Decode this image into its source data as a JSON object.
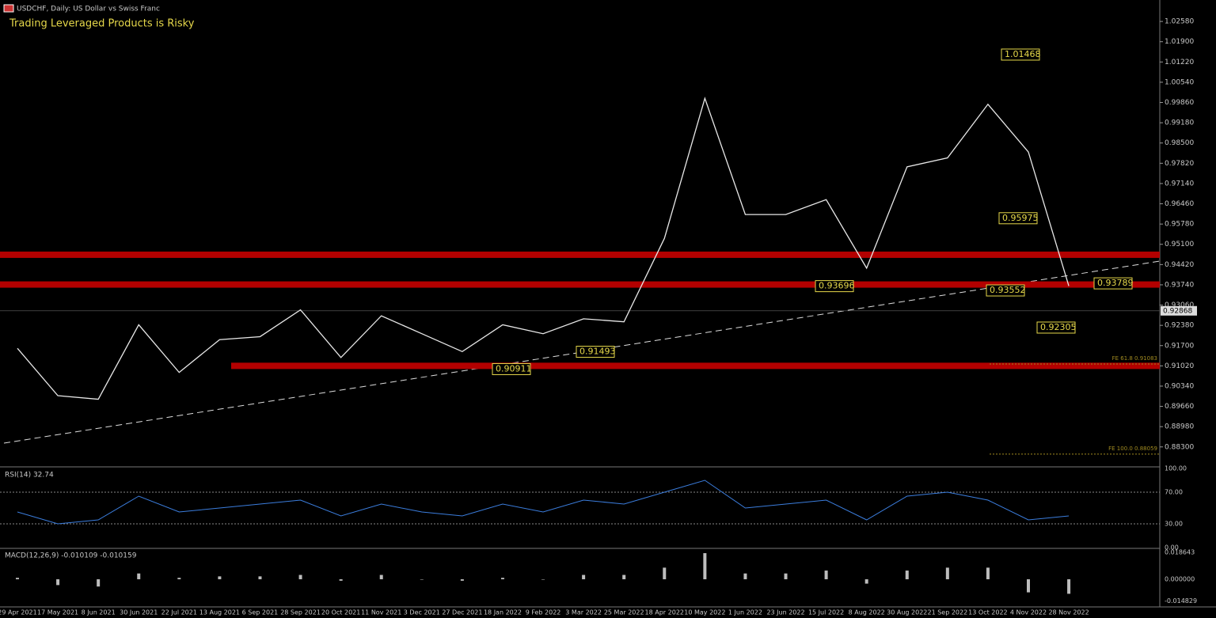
{
  "header": {
    "symbol": "USDCHF, Daily:  US Dollar vs Swiss Franc",
    "warning": "Trading Leveraged Products is Risky"
  },
  "chart_data": {
    "type": "line",
    "categories": [
      "29 Apr 2021",
      "17 May 2021",
      "8 Jun 2021",
      "30 Jun 2021",
      "22 Jul 2021",
      "13 Aug 2021",
      "6 Sep 2021",
      "28 Sep 2021",
      "20 Oct 2021",
      "11 Nov 2021",
      "3 Dec 2021",
      "27 Dec 2021",
      "18 Jan 2022",
      "9 Feb 2022",
      "3 Mar 2022",
      "25 Mar 2022",
      "18 Apr 2022",
      "10 May 2022",
      "1 Jun 2022",
      "23 Jun 2022",
      "15 Jul 2022",
      "8 Aug 2022",
      "30 Aug 2022",
      "21 Sep 2022",
      "13 Oct 2022",
      "4 Nov 2022",
      "28 Nov 2022"
    ],
    "series": [
      {
        "name": "USDCHF",
        "color": "#e8e8e8",
        "values": [
          0.9161,
          0.9002,
          0.899,
          0.924,
          0.908,
          0.919,
          0.92,
          0.929,
          0.913,
          0.927,
          0.921,
          0.915,
          0.924,
          0.921,
          0.926,
          0.925,
          0.953,
          1.0,
          0.961,
          0.961,
          0.966,
          0.943,
          0.977,
          0.98,
          0.998,
          0.982,
          0.937
        ]
      }
    ],
    "ylim": [
      0.8763,
      1.033
    ],
    "yticks": [
      {
        "value": 1.0258,
        "label": "1.02580"
      },
      {
        "value": 1.019,
        "label": "1.01900"
      },
      {
        "value": 1.0122,
        "label": "1.01220"
      },
      {
        "value": 1.0054,
        "label": "1.00540"
      },
      {
        "value": 0.9986,
        "label": "0.99860"
      },
      {
        "value": 0.9918,
        "label": "0.99180"
      },
      {
        "value": 0.985,
        "label": "0.98500"
      },
      {
        "value": 0.9782,
        "label": "0.97820"
      },
      {
        "value": 0.9714,
        "label": "0.97140"
      },
      {
        "value": 0.9646,
        "label": "0.96460"
      },
      {
        "value": 0.9578,
        "label": "0.95780"
      },
      {
        "value": 0.951,
        "label": "0.95100"
      },
      {
        "value": 0.9442,
        "label": "0.94420"
      },
      {
        "value": 0.9374,
        "label": "0.93740"
      },
      {
        "value": 0.9306,
        "label": "0.93060"
      },
      {
        "value": 0.9238,
        "label": "0.92380"
      },
      {
        "value": 0.917,
        "label": "0.91700"
      },
      {
        "value": 0.9102,
        "label": "0.91020"
      },
      {
        "value": 0.9034,
        "label": "0.90340"
      },
      {
        "value": 0.8966,
        "label": "0.89660"
      },
      {
        "value": 0.8898,
        "label": "0.88980"
      },
      {
        "value": 0.883,
        "label": "0.88300"
      }
    ],
    "current_price": 0.92868,
    "zones": [
      0.9475,
      0.9375,
      0.9102
    ],
    "zone_color": "#b30000",
    "annotations": [
      1.01468,
      0.95975,
      0.93789,
      0.93696,
      0.93552,
      0.92305,
      0.91493,
      0.90911
    ],
    "fib_levels": [
      {
        "value": 0.91083,
        "label": "FE 61.8 0.91083"
      },
      {
        "value": 0.88059,
        "label": "FE 100.0 0.88059"
      }
    ]
  },
  "rsi": {
    "title": "RSI(14) 32.74",
    "color": "#3b7ddd",
    "values": [
      45,
      30,
      35,
      65,
      45,
      50,
      55,
      60,
      40,
      55,
      45,
      40,
      55,
      45,
      60,
      55,
      70,
      85,
      50,
      55,
      60,
      35,
      65,
      70,
      60,
      35,
      40
    ],
    "ylim": [
      0,
      100
    ],
    "yticks": [
      {
        "value": 100,
        "label": "100.00"
      },
      {
        "value": 70,
        "label": "70.00"
      },
      {
        "value": 30,
        "label": "30.00"
      },
      {
        "value": 0,
        "label": "0.00"
      }
    ]
  },
  "macd": {
    "title": "MACD(12,26,9) -0.010109 -0.010159",
    "color": "#bdbdbd",
    "values": [
      0.001,
      -0.004,
      -0.005,
      0.004,
      0.001,
      0.002,
      0.002,
      0.003,
      -0.001,
      0.003,
      0.0,
      -0.001,
      0.001,
      0.0,
      0.003,
      0.003,
      0.008,
      0.018,
      0.004,
      0.004,
      0.006,
      -0.003,
      0.006,
      0.008,
      0.008,
      -0.009,
      -0.01
    ],
    "ylim": [
      -0.0185,
      0.0202
    ],
    "yticks": [
      {
        "value": 0.018643,
        "label": "0.018643"
      },
      {
        "value": 0,
        "label": "0.000000"
      },
      {
        "value": -0.014829,
        "label": "-0.014829"
      }
    ]
  }
}
